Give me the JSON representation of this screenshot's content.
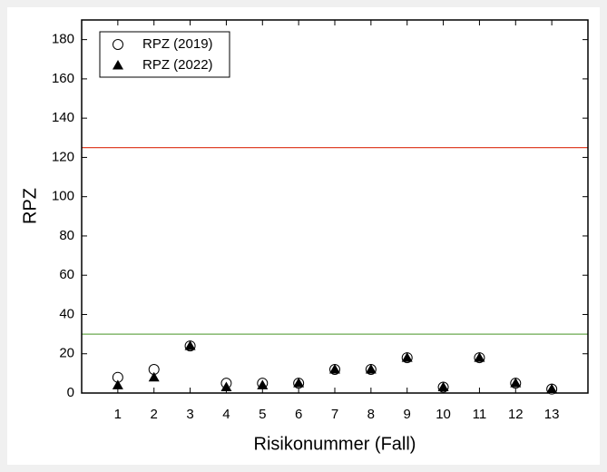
{
  "chart_data": {
    "type": "scatter",
    "x_label": "Risikonummer (Fall)",
    "y_label": "RPZ",
    "x": [
      1,
      2,
      3,
      4,
      5,
      6,
      7,
      8,
      9,
      10,
      11,
      12,
      13
    ],
    "series": [
      {
        "name": "RPZ (2019)",
        "color": "#000000",
        "marker": "open-circle",
        "values": [
          8,
          12,
          24,
          5,
          5,
          5,
          12,
          12,
          18,
          3,
          18,
          5,
          2
        ]
      },
      {
        "name": "RPZ (2022)",
        "color": "#000000",
        "marker": "filled-triangle",
        "values": [
          4,
          8,
          24,
          3,
          4,
          5,
          12,
          12,
          18,
          3,
          18,
          5,
          2
        ]
      }
    ],
    "reference_lines": [
      {
        "value": 125,
        "color": "#e0442c"
      },
      {
        "value": 30,
        "color": "#6aa84f"
      }
    ],
    "xlim": [
      0,
      14
    ],
    "xticks": [
      1,
      2,
      3,
      4,
      5,
      6,
      7,
      8,
      9,
      10,
      11,
      12,
      13
    ],
    "ylim": [
      0,
      190
    ],
    "yticks": [
      0,
      20,
      40,
      60,
      80,
      100,
      120,
      140,
      160,
      180
    ],
    "legend": "top-left"
  }
}
